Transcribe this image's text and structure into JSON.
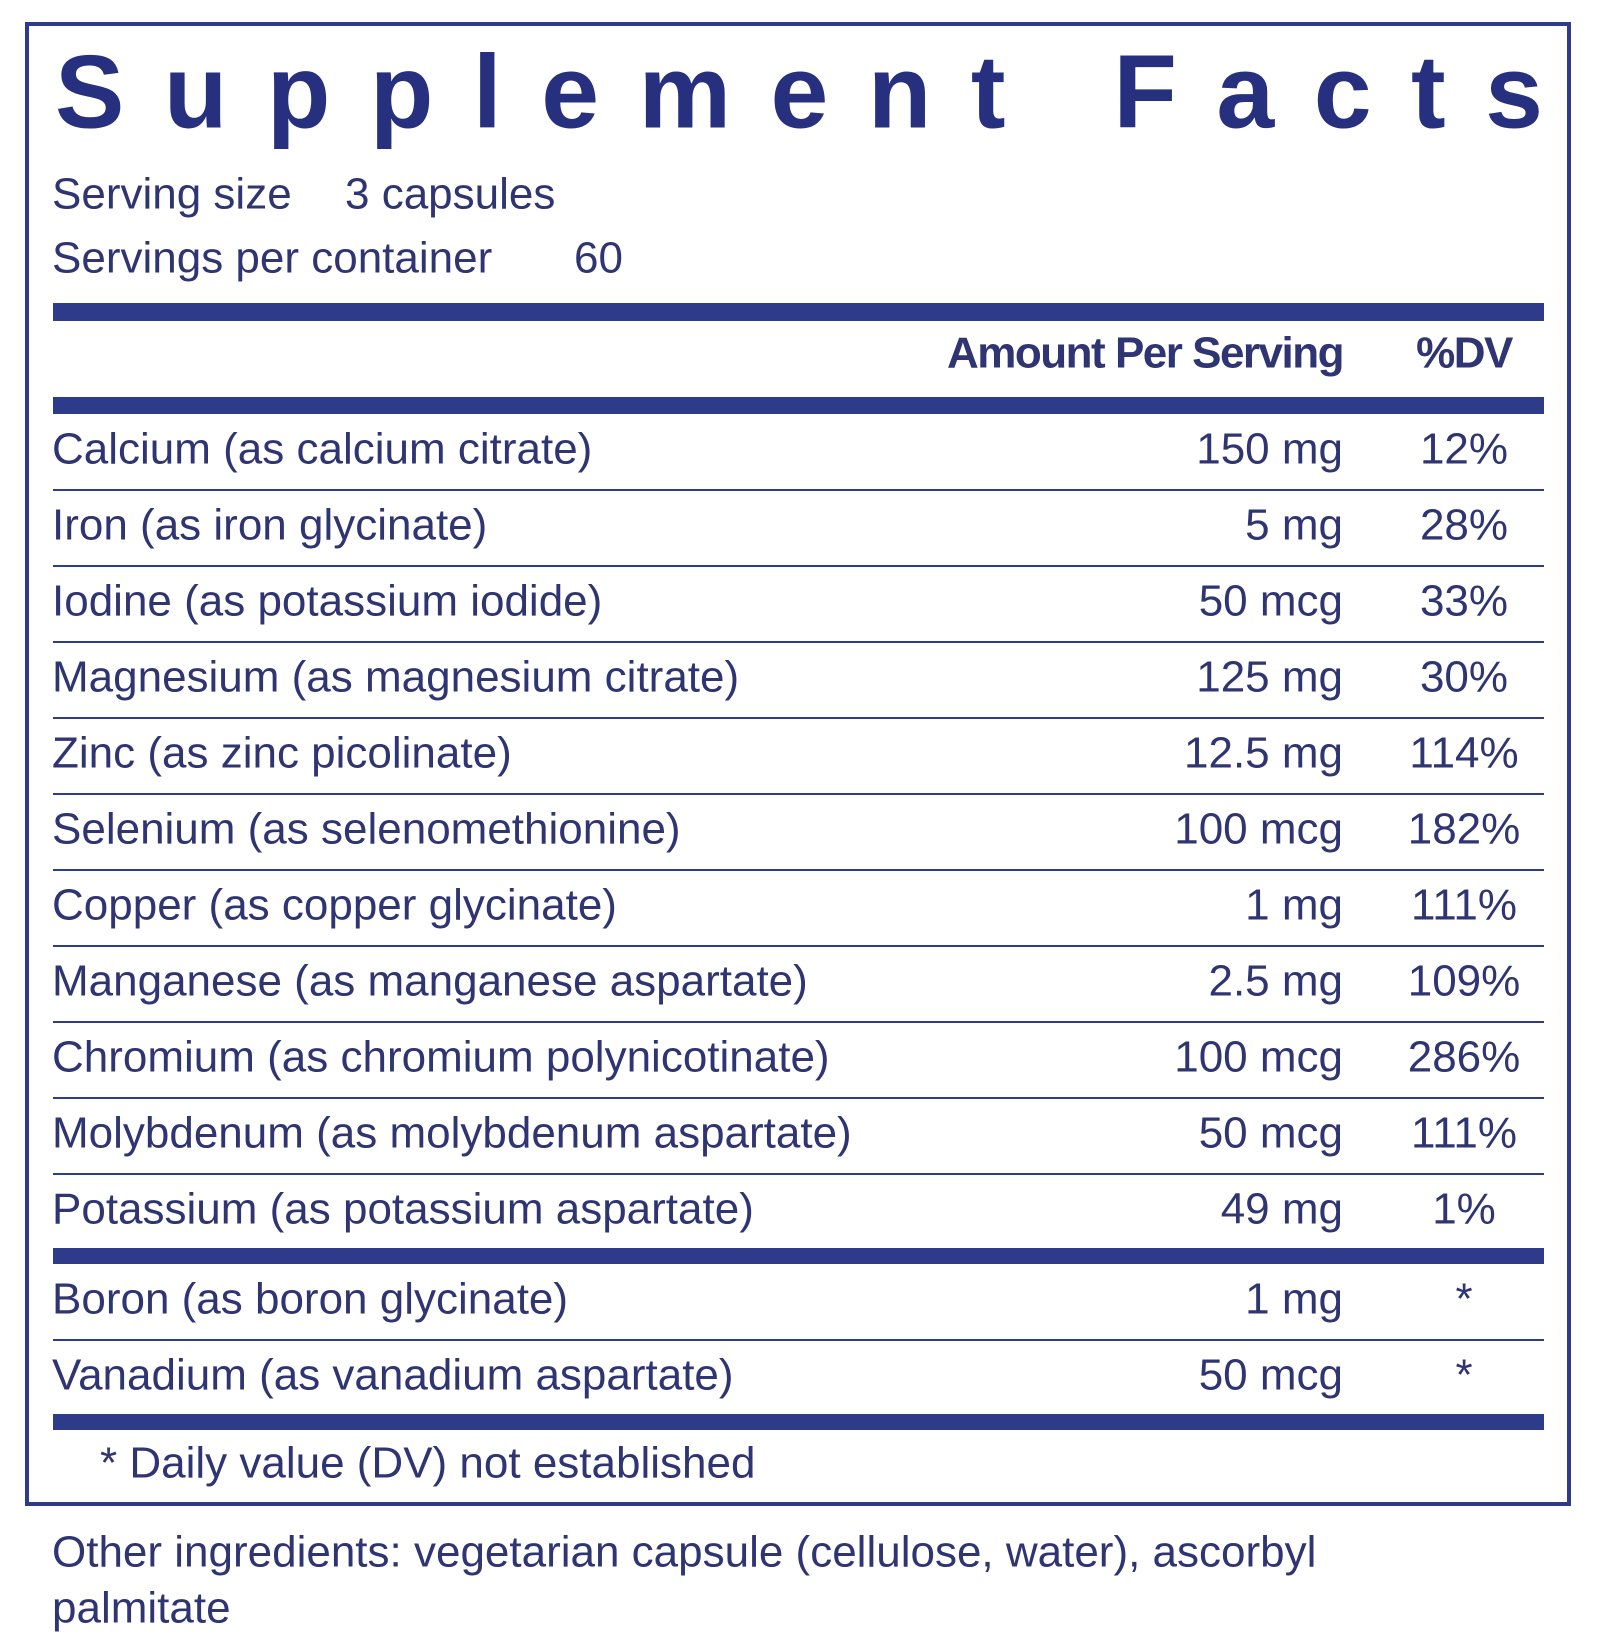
{
  "title": "Supplement Facts",
  "serving_size": {
    "label": "Serving size",
    "value": "3 capsules"
  },
  "servings_per_container": {
    "label": "Servings per container",
    "value": "60"
  },
  "header": {
    "amount": "Amount Per Serving",
    "dv": "%DV"
  },
  "rows": [
    {
      "name": "Calcium (as calcium citrate)",
      "amount": "150 mg",
      "dv": "12%"
    },
    {
      "name": "Iron (as iron glycinate)",
      "amount": "5 mg",
      "dv": "28%"
    },
    {
      "name": "Iodine (as potassium iodide)",
      "amount": "50 mcg",
      "dv": "33%"
    },
    {
      "name": "Magnesium (as magnesium citrate)",
      "amount": "125 mg",
      "dv": "30%"
    },
    {
      "name": "Zinc (as zinc picolinate)",
      "amount": "12.5 mg",
      "dv": "114%"
    },
    {
      "name": "Selenium (as selenomethionine)",
      "amount": "100 mcg",
      "dv": "182%"
    },
    {
      "name": "Copper (as copper glycinate)",
      "amount": "1 mg",
      "dv": "111%"
    },
    {
      "name": "Manganese (as manganese aspartate)",
      "amount": "2.5 mg",
      "dv": "109%"
    },
    {
      "name": "Chromium (as chromium polynicotinate)",
      "amount": "100 mcg",
      "dv": "286%"
    },
    {
      "name": "Molybdenum (as molybdenum aspartate)",
      "amount": "50 mcg",
      "dv": "111%"
    },
    {
      "name": "Potassium (as potassium aspartate)",
      "amount": "49 mg",
      "dv": "1%"
    }
  ],
  "rows_no_dv": [
    {
      "name": "Boron (as boron glycinate)",
      "amount": "1 mg",
      "dv": "*"
    },
    {
      "name": "Vanadium (as vanadium aspartate)",
      "amount": "50 mcg",
      "dv": "*"
    }
  ],
  "footnote": "* Daily value (DV) not established",
  "other_ingredients": [
    "Other ingredients: vegetarian capsule (cellulose, water), ascorbyl",
    "palmitate"
  ]
}
